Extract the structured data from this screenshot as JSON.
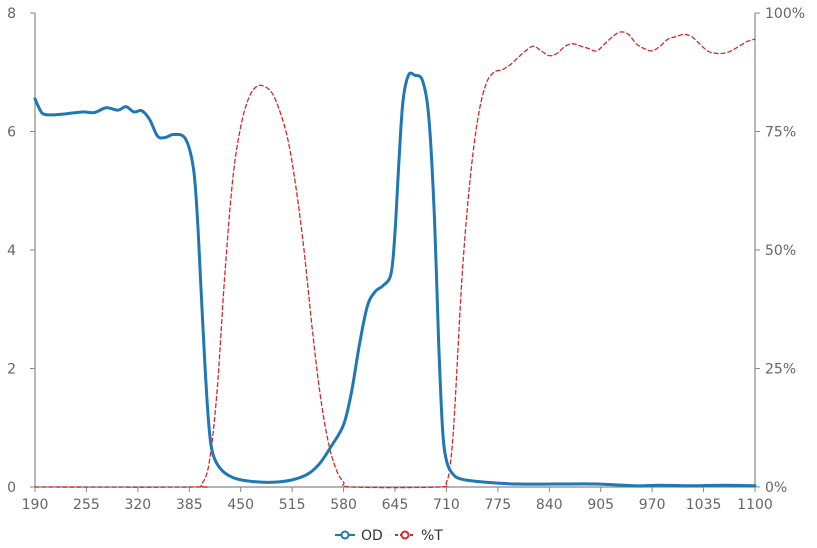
{
  "chart_data": {
    "type": "line",
    "x_ticks": [
      190,
      255,
      320,
      385,
      450,
      515,
      580,
      645,
      710,
      775,
      840,
      905,
      970,
      1035,
      1100
    ],
    "y_left_ticks": [
      0,
      2,
      4,
      6,
      8
    ],
    "y_right_ticks": [
      "0%",
      "25%",
      "50%",
      "75%",
      "100%"
    ],
    "xlim": [
      190,
      1100
    ],
    "ylim_left": [
      0,
      8
    ],
    "ylim_right": [
      0,
      100
    ],
    "legend_position": "bottom-center",
    "series": [
      {
        "name": "OD",
        "axis": "left",
        "color": "#1f77b4",
        "style": "solid",
        "points": [
          [
            190,
            6.55
          ],
          [
            195,
            6.4
          ],
          [
            200,
            6.3
          ],
          [
            210,
            6.28
          ],
          [
            230,
            6.3
          ],
          [
            250,
            6.33
          ],
          [
            265,
            6.32
          ],
          [
            280,
            6.4
          ],
          [
            295,
            6.36
          ],
          [
            305,
            6.42
          ],
          [
            315,
            6.33
          ],
          [
            325,
            6.35
          ],
          [
            335,
            6.2
          ],
          [
            345,
            5.92
          ],
          [
            355,
            5.9
          ],
          [
            365,
            5.95
          ],
          [
            380,
            5.88
          ],
          [
            390,
            5.4
          ],
          [
            395,
            4.6
          ],
          [
            400,
            3.3
          ],
          [
            405,
            2.0
          ],
          [
            410,
            1.0
          ],
          [
            415,
            0.55
          ],
          [
            425,
            0.3
          ],
          [
            440,
            0.16
          ],
          [
            460,
            0.1
          ],
          [
            490,
            0.08
          ],
          [
            515,
            0.12
          ],
          [
            535,
            0.22
          ],
          [
            550,
            0.4
          ],
          [
            565,
            0.7
          ],
          [
            580,
            1.05
          ],
          [
            590,
            1.6
          ],
          [
            600,
            2.4
          ],
          [
            610,
            3.05
          ],
          [
            620,
            3.3
          ],
          [
            630,
            3.4
          ],
          [
            640,
            3.6
          ],
          [
            645,
            4.3
          ],
          [
            650,
            5.5
          ],
          [
            655,
            6.5
          ],
          [
            662,
            6.95
          ],
          [
            670,
            6.95
          ],
          [
            680,
            6.85
          ],
          [
            688,
            6.2
          ],
          [
            695,
            4.5
          ],
          [
            700,
            2.5
          ],
          [
            705,
            1.0
          ],
          [
            710,
            0.45
          ],
          [
            718,
            0.22
          ],
          [
            730,
            0.13
          ],
          [
            760,
            0.08
          ],
          [
            800,
            0.05
          ],
          [
            850,
            0.05
          ],
          [
            900,
            0.05
          ],
          [
            950,
            0.02
          ],
          [
            980,
            0.03
          ],
          [
            1020,
            0.02
          ],
          [
            1060,
            0.03
          ],
          [
            1100,
            0.02
          ]
        ]
      },
      {
        "name": "%T",
        "axis": "right",
        "color": "#d62728",
        "style": "dashed",
        "points": [
          [
            190,
            0
          ],
          [
            390,
            0
          ],
          [
            400,
            0.5
          ],
          [
            410,
            5
          ],
          [
            420,
            20
          ],
          [
            430,
            45
          ],
          [
            440,
            65
          ],
          [
            450,
            76
          ],
          [
            460,
            82
          ],
          [
            470,
            84.5
          ],
          [
            480,
            84.5
          ],
          [
            490,
            83
          ],
          [
            500,
            79
          ],
          [
            510,
            73
          ],
          [
            520,
            63
          ],
          [
            530,
            50
          ],
          [
            540,
            34
          ],
          [
            550,
            20
          ],
          [
            560,
            10
          ],
          [
            570,
            4
          ],
          [
            580,
            1
          ],
          [
            590,
            0
          ],
          [
            700,
            0
          ],
          [
            710,
            1
          ],
          [
            715,
            5
          ],
          [
            720,
            15
          ],
          [
            730,
            45
          ],
          [
            740,
            65
          ],
          [
            750,
            78
          ],
          [
            760,
            85
          ],
          [
            770,
            87.5
          ],
          [
            780,
            88
          ],
          [
            790,
            89
          ],
          [
            800,
            90.5
          ],
          [
            810,
            92
          ],
          [
            820,
            93
          ],
          [
            830,
            92
          ],
          [
            840,
            91
          ],
          [
            850,
            91.5
          ],
          [
            860,
            93
          ],
          [
            870,
            93.5
          ],
          [
            880,
            93
          ],
          [
            890,
            92.5
          ],
          [
            900,
            92
          ],
          [
            910,
            93.5
          ],
          [
            920,
            95
          ],
          [
            930,
            96
          ],
          [
            940,
            95.5
          ],
          [
            950,
            93.5
          ],
          [
            960,
            92.5
          ],
          [
            970,
            92
          ],
          [
            980,
            93
          ],
          [
            990,
            94.5
          ],
          [
            1000,
            95
          ],
          [
            1010,
            95.5
          ],
          [
            1020,
            95
          ],
          [
            1030,
            93.5
          ],
          [
            1040,
            92
          ],
          [
            1050,
            91.5
          ],
          [
            1060,
            91.5
          ],
          [
            1070,
            92
          ],
          [
            1080,
            93
          ],
          [
            1090,
            94
          ],
          [
            1100,
            94.5
          ]
        ]
      }
    ]
  }
}
